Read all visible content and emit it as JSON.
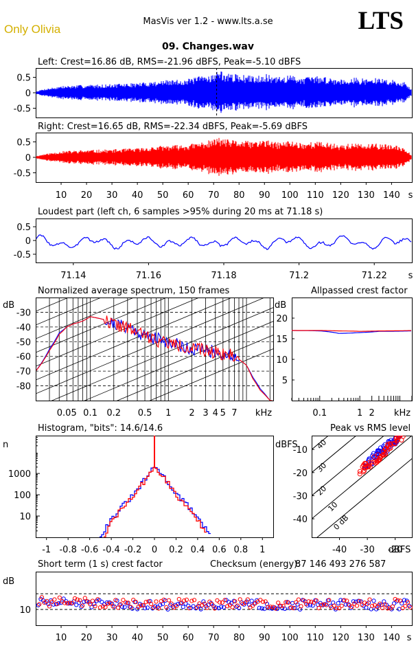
{
  "header": {
    "badge": "Only Olivia",
    "app": "MasVis ver 1.2 - www.lts.a.se",
    "brand": "LTS",
    "file": "09. Changes.wav"
  },
  "colors": {
    "left": "#0000ff",
    "right": "#ff0000",
    "grid": "#000000",
    "badge": "#d4b000"
  },
  "chart_data": [
    {
      "type": "line",
      "title": "Left: Crest=16.86 dB, RMS=-21.96 dBFS, Peak=-5.10 dBFS",
      "xlabel": "s",
      "ylabel": "",
      "xlim": [
        0,
        148
      ],
      "ylim": [
        -0.8,
        0.8
      ],
      "y_ticks": [
        0.5,
        0,
        -0.5
      ],
      "y_tick_labels": [
        "0.5",
        "0",
        "-0.5"
      ],
      "marker_x": 71.18,
      "envelope": {
        "t": [
          0,
          3,
          10,
          20,
          30,
          40,
          50,
          55,
          60,
          65,
          70,
          72,
          75,
          80,
          85,
          90,
          95,
          100,
          105,
          110,
          115,
          120,
          125,
          130,
          135,
          140,
          145,
          148
        ],
        "amp": [
          0.04,
          0.12,
          0.22,
          0.26,
          0.28,
          0.32,
          0.4,
          0.42,
          0.45,
          0.55,
          0.62,
          0.75,
          0.62,
          0.6,
          0.55,
          0.62,
          0.5,
          0.58,
          0.5,
          0.55,
          0.5,
          0.45,
          0.5,
          0.45,
          0.48,
          0.42,
          0.35,
          0.1
        ]
      }
    },
    {
      "type": "line",
      "title": "Right: Crest=16.65 dB, RMS=-22.34 dBFS, Peak=-5.69 dBFS",
      "xlabel": "s",
      "ylabel": "",
      "xlim": [
        0,
        148
      ],
      "ylim": [
        -0.8,
        0.8
      ],
      "y_ticks": [
        0.5,
        0,
        -0.5
      ],
      "y_tick_labels": [
        "0.5",
        "0",
        "-0.5"
      ],
      "x_ticks": [
        10,
        20,
        30,
        40,
        50,
        60,
        70,
        80,
        90,
        100,
        110,
        120,
        130,
        140
      ],
      "x_tick_labels": [
        "10",
        "20",
        "30",
        "40",
        "50",
        "60",
        "70",
        "80",
        "90",
        "100",
        "110",
        "120",
        "130",
        "140"
      ],
      "envelope": {
        "t": [
          0,
          3,
          10,
          20,
          30,
          40,
          50,
          55,
          60,
          65,
          70,
          72,
          75,
          80,
          85,
          90,
          95,
          100,
          105,
          110,
          115,
          120,
          125,
          130,
          135,
          140,
          145,
          148
        ],
        "amp": [
          0.04,
          0.1,
          0.2,
          0.24,
          0.26,
          0.3,
          0.38,
          0.4,
          0.42,
          0.5,
          0.58,
          0.66,
          0.58,
          0.55,
          0.52,
          0.58,
          0.48,
          0.55,
          0.48,
          0.52,
          0.48,
          0.42,
          0.46,
          0.42,
          0.45,
          0.4,
          0.33,
          0.08
        ]
      }
    },
    {
      "type": "line",
      "title": "Loudest part (left  ch, 6 samples >95% during 20 ms at 71.18 s)",
      "xlabel": "s",
      "ylabel": "",
      "xlim": [
        71.13,
        71.23
      ],
      "ylim": [
        -0.8,
        0.8
      ],
      "y_ticks": [
        0.5,
        0,
        -0.5
      ],
      "y_tick_labels": [
        "0.5",
        "0",
        "-0.5"
      ],
      "x_ticks": [
        71.14,
        71.16,
        71.18,
        71.2,
        71.22
      ],
      "x_tick_labels": [
        "71.14",
        "71.16",
        "71.18",
        "71.2",
        "71.22"
      ]
    },
    {
      "type": "line",
      "title": "Normalized average spectrum, 150 frames",
      "xlabel": "kHz",
      "ylabel": "dB",
      "xlim_hz": [
        20,
        22000
      ],
      "ylim": [
        -90,
        -20
      ],
      "y_ticks": [
        -30,
        -40,
        -50,
        -60,
        -70,
        -80
      ],
      "y_tick_labels": [
        "-30",
        "-40",
        "-50",
        "-60",
        "-70",
        "-80"
      ],
      "x_ticks_hz": [
        50,
        100,
        200,
        500,
        1000,
        2000,
        3000,
        4000,
        5000,
        7000
      ],
      "x_tick_labels": [
        "0.05",
        "0.1",
        "0.2",
        "0.5",
        "1",
        "2",
        "3",
        "4",
        "5",
        "7"
      ],
      "series": [
        {
          "color": "#0000ff",
          "x": [
            20,
            30,
            40,
            50,
            60,
            80,
            100,
            150,
            200,
            300,
            500,
            700,
            1000,
            1500,
            2000,
            3000,
            4000,
            5000,
            6000,
            7000,
            8000,
            10000,
            12000,
            15000,
            20000
          ],
          "y": [
            -70,
            -55,
            -44,
            -40,
            -38,
            -36,
            -33,
            -35,
            -38,
            -40,
            -46,
            -48,
            -50,
            -53,
            -55,
            -56,
            -57,
            -58,
            -59,
            -60,
            -62,
            -66,
            -74,
            -82,
            -90
          ]
        },
        {
          "color": "#ff0000",
          "x": [
            20,
            30,
            40,
            50,
            60,
            80,
            100,
            150,
            200,
            300,
            500,
            700,
            1000,
            1500,
            2000,
            3000,
            4000,
            5000,
            6000,
            7000,
            8000,
            10000,
            12000,
            15000,
            20000
          ],
          "y": [
            -70,
            -56,
            -45,
            -40,
            -38,
            -36,
            -33,
            -35,
            -38,
            -41,
            -46,
            -49,
            -51,
            -53,
            -55,
            -56,
            -57,
            -58,
            -59,
            -60,
            -62,
            -66,
            -75,
            -83,
            -90
          ]
        }
      ]
    },
    {
      "type": "line",
      "title": "Allpassed crest factor",
      "xlabel": "kHz",
      "ylabel": "dB",
      "xlim_hz": [
        20,
        20000
      ],
      "ylim": [
        0,
        25
      ],
      "y_ticks": [
        20,
        15,
        10,
        5
      ],
      "y_tick_labels": [
        "20",
        "15",
        "10",
        "5"
      ],
      "x_ticks_hz": [
        100,
        1000,
        2000
      ],
      "x_tick_labels": [
        "0.1",
        "1",
        "2"
      ],
      "series": [
        {
          "color": "#0000ff",
          "x": [
            20,
            100,
            300,
            1000,
            3000,
            20000
          ],
          "y": [
            17,
            16.9,
            16.3,
            16.5,
            16.8,
            16.9
          ]
        },
        {
          "color": "#ff0000",
          "x": [
            20,
            100,
            300,
            1000,
            3000,
            20000
          ],
          "y": [
            17,
            17.0,
            16.9,
            16.8,
            16.9,
            17.0
          ]
        }
      ]
    },
    {
      "type": "line",
      "title": "Histogram, \"bits\": 14.6/14.6",
      "xlabel": "",
      "ylabel": "n",
      "xlim": [
        -1.1,
        1.1
      ],
      "ylim_log": [
        1,
        60000
      ],
      "y_ticks": [
        10,
        100,
        1000
      ],
      "y_tick_labels": [
        "10",
        "100",
        "1000"
      ],
      "x_ticks": [
        -1,
        -0.8,
        -0.6,
        -0.4,
        -0.2,
        0,
        0.2,
        0.4,
        0.6,
        0.8,
        1
      ],
      "x_tick_labels": [
        "-1",
        "-0.8",
        "-0.6",
        "-0.4",
        "-0.2",
        "0",
        "0.2",
        "0.4",
        "0.6",
        "0.8",
        "1"
      ],
      "series": [
        {
          "color": "#0000ff",
          "x": [
            -0.52,
            -0.4,
            -0.3,
            -0.2,
            -0.1,
            0,
            0.1,
            0.2,
            0.3,
            0.4,
            0.52
          ],
          "y": [
            1,
            8,
            30,
            100,
            500,
            2200,
            500,
            100,
            30,
            8,
            1
          ]
        },
        {
          "color": "#ff0000",
          "x": [
            -0.48,
            -0.4,
            -0.3,
            -0.2,
            -0.1,
            0,
            0.1,
            0.2,
            0.3,
            0.4,
            0.48
          ],
          "y": [
            1,
            6,
            25,
            90,
            450,
            2000,
            450,
            90,
            25,
            6,
            1
          ]
        }
      ]
    },
    {
      "type": "scatter",
      "title": "Peak vs RMS level",
      "xlabel": "dBFS",
      "ylabel": "dBFS",
      "xlim": [
        -50,
        -14
      ],
      "ylim": [
        -48,
        -4
      ],
      "x_ticks": [
        -40,
        -30,
        -20
      ],
      "x_tick_labels": [
        "-40",
        "-30",
        "-20"
      ],
      "y_ticks": [
        -10,
        -20,
        -30,
        -40
      ],
      "y_tick_labels": [
        "-10",
        "-20",
        "-30",
        "-40"
      ],
      "diagonals": [
        "40",
        "30",
        "20",
        "10",
        "0 dB"
      ],
      "series": [
        {
          "color": "#0000ff",
          "x_range": [
            -31,
            -18
          ],
          "offset": 14
        },
        {
          "color": "#ff0000",
          "x_range": [
            -33,
            -17
          ],
          "offset": 13
        }
      ]
    },
    {
      "type": "scatter",
      "title": "Short term (1 s) crest factor",
      "xlabel": "s",
      "ylabel": "dB",
      "xlim": [
        0,
        148
      ],
      "ylim": [
        5,
        22
      ],
      "y_ticks": [
        10
      ],
      "y_tick_labels": [
        "10"
      ],
      "dashed_y": [
        10,
        15
      ],
      "x_ticks": [
        10,
        20,
        30,
        40,
        50,
        60,
        70,
        80,
        90,
        100,
        110,
        120,
        130,
        140
      ],
      "x_tick_labels": [
        "10",
        "20",
        "30",
        "40",
        "50",
        "60",
        "70",
        "80",
        "90",
        "100",
        "110",
        "120",
        "130",
        "140"
      ],
      "checksum_label": "Checksum (energy):",
      "checksum_value": "87 146 493 276 587",
      "series": [
        {
          "color": "#0000ff",
          "center": 11.5
        },
        {
          "color": "#ff0000",
          "center": 11.8
        }
      ]
    }
  ]
}
